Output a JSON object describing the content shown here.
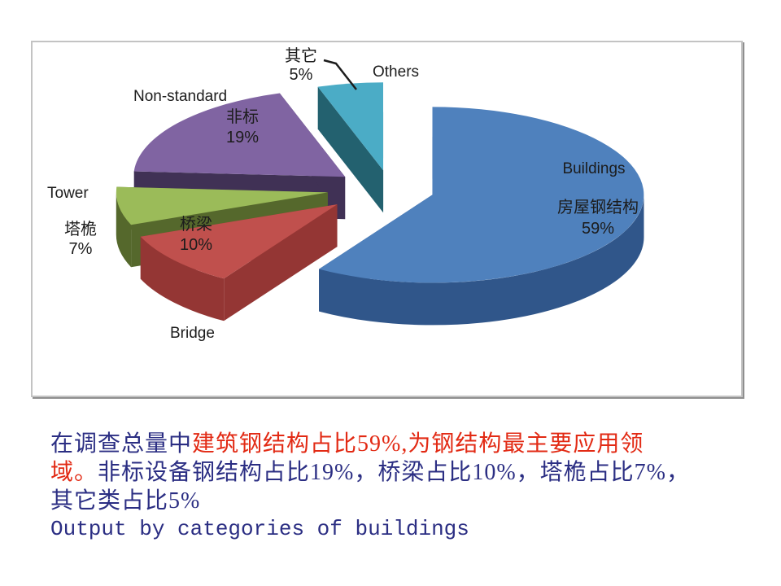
{
  "chart_data": {
    "type": "pie",
    "style": "3d-exploded",
    "title": "",
    "legend_position": "none",
    "direction": "clockwise",
    "start_angle_deg": 0,
    "total": 100,
    "slices": [
      {
        "id": "buildings",
        "label_en": "Buildings",
        "label_zh": "房屋钢结构",
        "value": 59,
        "pct_label": "59%",
        "color": "#4f81bd",
        "side_color": "#30568a"
      },
      {
        "id": "bridge",
        "label_en": "Bridge",
        "label_zh": "桥梁",
        "value": 10,
        "pct_label": "10%",
        "color": "#c0504d",
        "side_color": "#943634"
      },
      {
        "id": "tower",
        "label_en": "Tower",
        "label_zh": "塔桅",
        "value": 7,
        "pct_label": "7%",
        "color": "#9bbb59",
        "side_color": "#55682c"
      },
      {
        "id": "nonstandard",
        "label_en": "Non-standard",
        "label_zh": "非标",
        "value": 19,
        "pct_label": "19%",
        "color": "#8064a2",
        "side_color": "#403155"
      },
      {
        "id": "others",
        "label_en": "Others",
        "label_zh": "其它",
        "value": 5,
        "pct_label": "5%",
        "color": "#4bacc6",
        "side_color": "#23616f"
      }
    ]
  },
  "caption": {
    "line1_navy": "在调查总量中",
    "line1_red": "建筑钢结构占比59%,为钢结构最主要应用领",
    "line2_red": "域。",
    "line2_navy": "非标设备钢结构占比19%，桥梁占比10%，塔桅占比7%，",
    "line3_navy": "其它类占比5%",
    "line4_navy": "Output by categories of buildings",
    "navy": "#2b2e83",
    "red": "#e22a14"
  }
}
